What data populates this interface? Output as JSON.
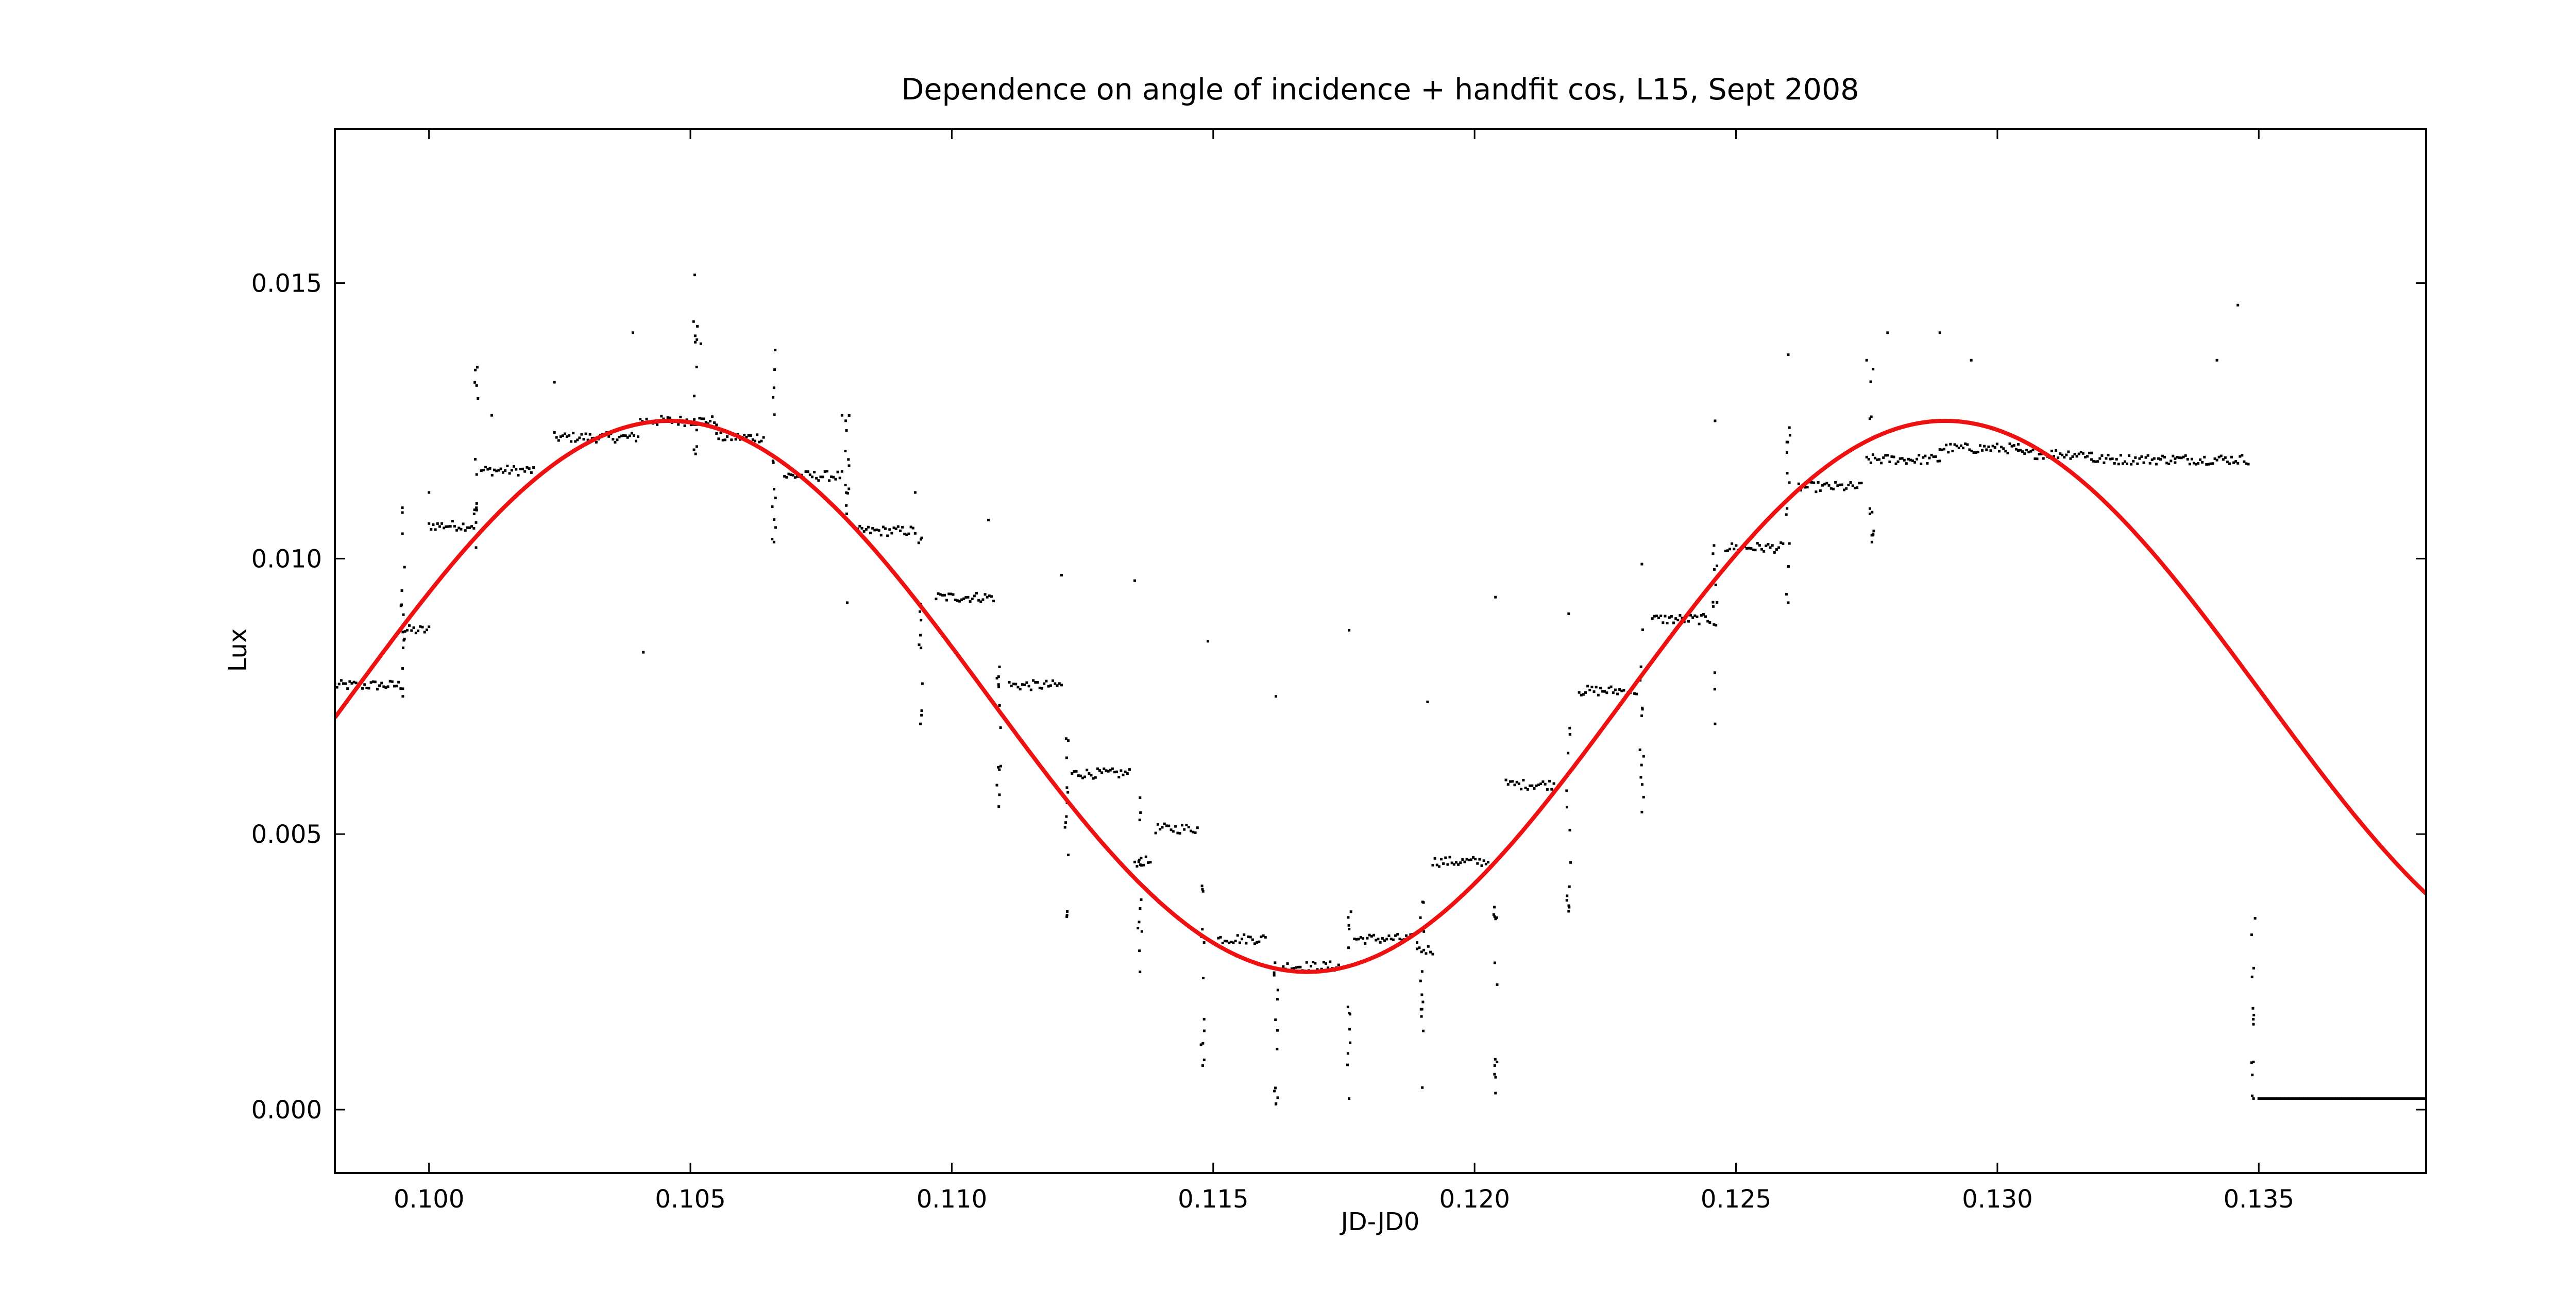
{
  "chart_data": {
    "type": "scatter",
    "title": "Dependence on angle of incidence + handfit cos, L15, Sept 2008",
    "xlabel": "JD-JD0",
    "ylabel": "Lux",
    "xlim": [
      0.0982,
      0.1382
    ],
    "ylim": [
      -0.00115,
      0.0178
    ],
    "xticks": [
      0.1,
      0.105,
      0.11,
      0.115,
      0.12,
      0.125,
      0.13,
      0.135
    ],
    "xtick_labels": [
      "0.100",
      "0.105",
      "0.110",
      "0.115",
      "0.120",
      "0.125",
      "0.130",
      "0.135"
    ],
    "yticks": [
      0.0,
      0.005,
      0.01,
      0.015
    ],
    "ytick_labels": [
      "0.000",
      "0.005",
      "0.010",
      "0.015"
    ],
    "grid": false,
    "series": [
      {
        "kind": "measurements",
        "color": "#000000",
        "plateaus": [
          {
            "x0": 0.0982,
            "x1": 0.0995,
            "y": 0.0077
          },
          {
            "x0": 0.0995,
            "x1": 0.1,
            "y": 0.0087
          },
          {
            "x0": 0.1,
            "x1": 0.1009,
            "y": 0.0106
          },
          {
            "x0": 0.101,
            "x1": 0.102,
            "y": 0.0116
          },
          {
            "x0": 0.1024,
            "x1": 0.104,
            "y": 0.0122
          },
          {
            "x0": 0.104,
            "x1": 0.1055,
            "y": 0.0125
          },
          {
            "x0": 0.1055,
            "x1": 0.1064,
            "y": 0.0122
          },
          {
            "x0": 0.1068,
            "x1": 0.1079,
            "y": 0.0115
          },
          {
            "x0": 0.1082,
            "x1": 0.1093,
            "y": 0.0105
          },
          {
            "x0": 0.1097,
            "x1": 0.1108,
            "y": 0.0093
          },
          {
            "x0": 0.1111,
            "x1": 0.1121,
            "y": 0.0077
          },
          {
            "x0": 0.1123,
            "x1": 0.1134,
            "y": 0.0061
          },
          {
            "x0": 0.1135,
            "x1": 0.1138,
            "y": 0.0045
          },
          {
            "x0": 0.1139,
            "x1": 0.1147,
            "y": 0.0051
          },
          {
            "x0": 0.1151,
            "x1": 0.116,
            "y": 0.0031
          },
          {
            "x0": 0.1163,
            "x1": 0.1174,
            "y": 0.0026
          },
          {
            "x0": 0.1177,
            "x1": 0.1189,
            "y": 0.0031
          },
          {
            "x0": 0.1189,
            "x1": 0.1192,
            "y": 0.0029
          },
          {
            "x0": 0.1192,
            "x1": 0.1203,
            "y": 0.0045
          },
          {
            "x0": 0.1206,
            "x1": 0.1216,
            "y": 0.0059
          },
          {
            "x0": 0.122,
            "x1": 0.1231,
            "y": 0.0076
          },
          {
            "x0": 0.1234,
            "x1": 0.1245,
            "y": 0.0089
          },
          {
            "x0": 0.1248,
            "x1": 0.1259,
            "y": 0.0102
          },
          {
            "x0": 0.1262,
            "x1": 0.1274,
            "y": 0.0113
          },
          {
            "x0": 0.1275,
            "x1": 0.1289,
            "y": 0.0118
          },
          {
            "x0": 0.1289,
            "x1": 0.1304,
            "y": 0.012
          },
          {
            "x0": 0.1304,
            "x1": 0.1318,
            "y": 0.0119
          },
          {
            "x0": 0.1318,
            "x1": 0.1334,
            "y": 0.0118
          },
          {
            "x0": 0.1334,
            "x1": 0.1348,
            "y": 0.0118
          },
          {
            "x0": 0.135,
            "x1": 0.1382,
            "y": 0.0002
          }
        ],
        "dips": [
          {
            "x": 0.0995,
            "y": 0.0075
          },
          {
            "x": 0.1009,
            "y": 0.0102
          },
          {
            "x": 0.1051,
            "y": 0.0119
          },
          {
            "x": 0.1066,
            "y": 0.0103
          },
          {
            "x": 0.108,
            "y": 0.0092
          },
          {
            "x": 0.1094,
            "y": 0.007
          },
          {
            "x": 0.1109,
            "y": 0.0055
          },
          {
            "x": 0.1122,
            "y": 0.0035
          },
          {
            "x": 0.1136,
            "y": 0.0025
          },
          {
            "x": 0.1148,
            "y": 0.0008
          },
          {
            "x": 0.1162,
            "y": 0.0001
          },
          {
            "x": 0.1176,
            "y": 0.0002
          },
          {
            "x": 0.119,
            "y": 0.0004
          },
          {
            "x": 0.1204,
            "y": 0.0003
          },
          {
            "x": 0.1218,
            "y": 0.0036
          },
          {
            "x": 0.1232,
            "y": 0.0054
          },
          {
            "x": 0.1246,
            "y": 0.007
          },
          {
            "x": 0.126,
            "y": 0.0092
          },
          {
            "x": 0.1276,
            "y": 0.0103
          },
          {
            "x": 0.1349,
            "y": 0.0002
          }
        ],
        "spikes": [
          {
            "x": 0.1,
            "y": 0.0112
          },
          {
            "x": 0.1012,
            "y": 0.0126
          },
          {
            "x": 0.1024,
            "y": 0.0132
          },
          {
            "x": 0.1039,
            "y": 0.0141
          },
          {
            "x": 0.1041,
            "y": 0.0083
          },
          {
            "x": 0.1052,
            "y": 0.0139
          },
          {
            "x": 0.1066,
            "y": 0.0131
          },
          {
            "x": 0.1079,
            "y": 0.0126
          },
          {
            "x": 0.1093,
            "y": 0.0112
          },
          {
            "x": 0.1107,
            "y": 0.0107
          },
          {
            "x": 0.1121,
            "y": 0.0097
          },
          {
            "x": 0.1135,
            "y": 0.0096
          },
          {
            "x": 0.1149,
            "y": 0.0085
          },
          {
            "x": 0.1162,
            "y": 0.0075
          },
          {
            "x": 0.1176,
            "y": 0.0087
          },
          {
            "x": 0.1191,
            "y": 0.0074
          },
          {
            "x": 0.1204,
            "y": 0.0093
          },
          {
            "x": 0.1218,
            "y": 0.009
          },
          {
            "x": 0.1232,
            "y": 0.0099
          },
          {
            "x": 0.1246,
            "y": 0.0125
          },
          {
            "x": 0.126,
            "y": 0.0137
          },
          {
            "x": 0.1275,
            "y": 0.0136
          },
          {
            "x": 0.1279,
            "y": 0.0141
          },
          {
            "x": 0.1289,
            "y": 0.0141
          },
          {
            "x": 0.1295,
            "y": 0.0136
          },
          {
            "x": 0.1346,
            "y": 0.0146
          },
          {
            "x": 0.1342,
            "y": 0.0136
          }
        ]
      },
      {
        "kind": "fit",
        "color": "#ee1111",
        "model": "cosine",
        "center": 0.0075,
        "amplitude": 0.005,
        "peak_x": 0.1046,
        "period": 0.0244
      }
    ]
  }
}
